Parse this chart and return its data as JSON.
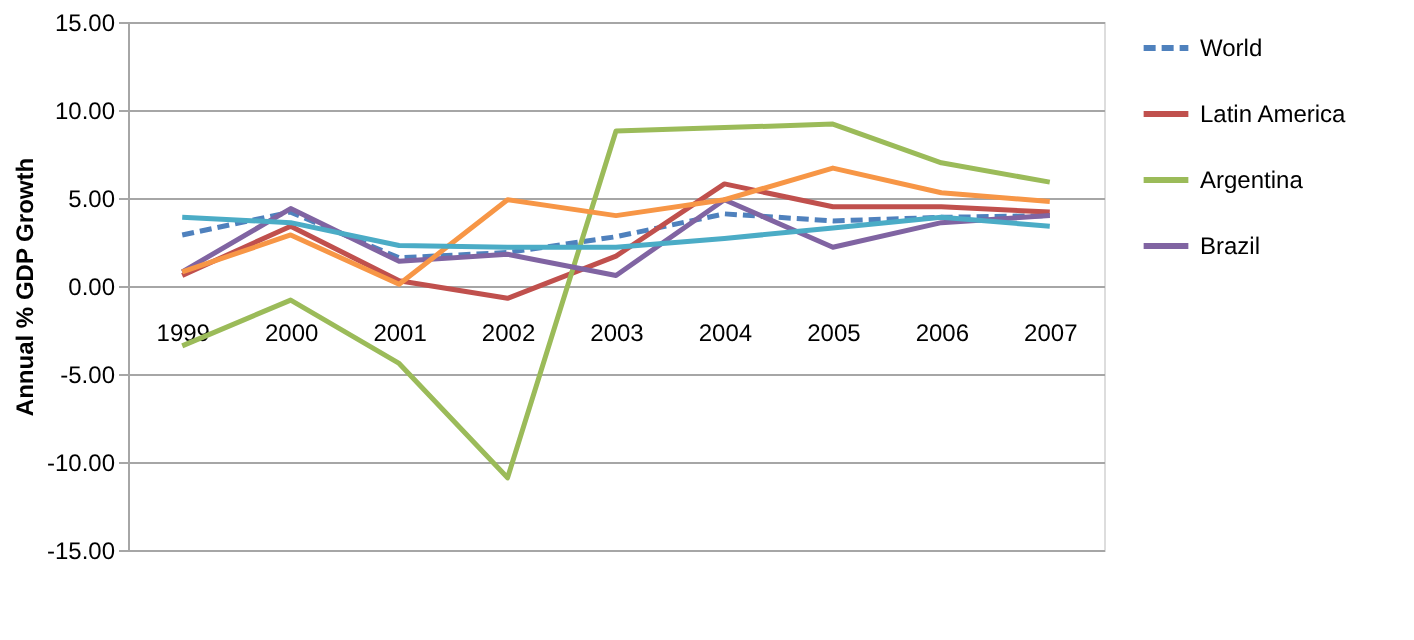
{
  "chart_data": {
    "type": "line",
    "ylabel": "Annual % GDP Growth",
    "categories": [
      "1999",
      "2000",
      "2001",
      "2002",
      "2003",
      "2004",
      "2005",
      "2006",
      "2007"
    ],
    "series": [
      {
        "name": "World",
        "color": "#4f81bd",
        "line_style": "dashed",
        "values": [
          2.9,
          4.2,
          1.6,
          1.9,
          2.8,
          4.1,
          3.7,
          3.9,
          4.0
        ]
      },
      {
        "name": "Latin America",
        "color": "#c0504d",
        "values": [
          0.6,
          3.4,
          0.3,
          -0.7,
          1.7,
          5.8,
          4.5,
          4.5,
          4.2
        ]
      },
      {
        "name": "Argentina",
        "color": "#9bbb59",
        "values": [
          -3.4,
          -0.8,
          -4.4,
          -10.9,
          8.8,
          9.0,
          9.2,
          7.0,
          5.9
        ]
      },
      {
        "name": "Brazil",
        "color": "#8064a2",
        "values": [
          0.8,
          4.4,
          1.4,
          1.8,
          0.6,
          4.9,
          2.2,
          3.6,
          4.0
        ]
      },
      {
        "color": "#f79646",
        "values": [
          0.8,
          2.9,
          0.1,
          4.9,
          4.0,
          4.9,
          6.7,
          5.3,
          4.8
        ]
      },
      {
        "color": "#4bacc6",
        "values": [
          3.9,
          3.6,
          2.3,
          2.2,
          2.2,
          2.7,
          3.3,
          3.9,
          3.4
        ]
      }
    ],
    "ylim": [
      -15,
      15
    ],
    "yticks": [
      {
        "value": -15,
        "label": "-15.00"
      },
      {
        "value": -10,
        "label": "-10.00"
      },
      {
        "value": -5,
        "label": "-5.00"
      },
      {
        "value": 0,
        "label": "0.00"
      },
      {
        "value": 5,
        "label": "5.00"
      },
      {
        "value": 10,
        "label": "10.00"
      },
      {
        "value": 15,
        "label": "15.00"
      }
    ],
    "grid": "y",
    "legend": "right",
    "marker": "none"
  }
}
